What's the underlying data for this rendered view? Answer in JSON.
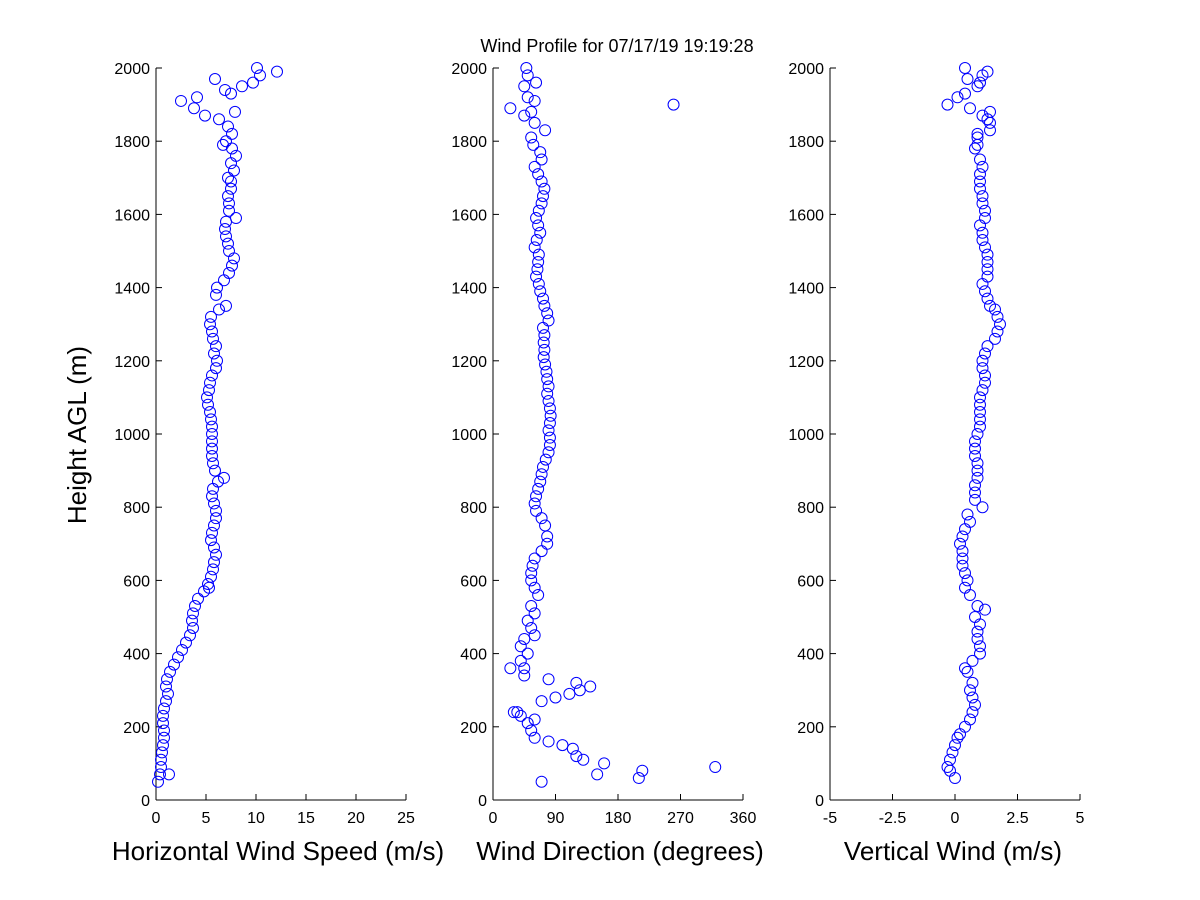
{
  "title": "Wind Profile for  07/17/19 19:19:28",
  "ylabel": "Height AGL (m)",
  "marker_color": "#0000ff",
  "chart_data": [
    {
      "type": "scatter",
      "name": "horizontal-wind-speed",
      "xlabel": "Horizontal Wind Speed (m/s)",
      "ylabel": "Height AGL (m)",
      "xlim": [
        0,
        25
      ],
      "ylim": [
        0,
        2000
      ],
      "xticks": [
        "0",
        "5",
        "10",
        "15",
        "20",
        "25"
      ],
      "yticks": [
        "0",
        "200",
        "400",
        "600",
        "800",
        "1000",
        "1200",
        "1400",
        "1600",
        "1800",
        "2000"
      ],
      "marker": "open-circle",
      "grid": false,
      "points": [
        [
          0.2,
          50
        ],
        [
          0.4,
          70
        ],
        [
          1.3,
          70
        ],
        [
          0.5,
          90
        ],
        [
          0.5,
          110
        ],
        [
          0.6,
          130
        ],
        [
          0.7,
          150
        ],
        [
          0.8,
          170
        ],
        [
          0.8,
          190
        ],
        [
          0.7,
          210
        ],
        [
          0.7,
          230
        ],
        [
          0.8,
          250
        ],
        [
          1.0,
          270
        ],
        [
          1.2,
          290
        ],
        [
          1.0,
          310
        ],
        [
          1.1,
          330
        ],
        [
          1.4,
          350
        ],
        [
          1.8,
          370
        ],
        [
          2.2,
          390
        ],
        [
          2.6,
          410
        ],
        [
          3.0,
          430
        ],
        [
          3.4,
          450
        ],
        [
          3.7,
          470
        ],
        [
          3.6,
          490
        ],
        [
          3.7,
          510
        ],
        [
          3.9,
          530
        ],
        [
          4.2,
          550
        ],
        [
          4.8,
          570
        ],
        [
          5.3,
          580
        ],
        [
          5.2,
          590
        ],
        [
          5.5,
          610
        ],
        [
          5.7,
          630
        ],
        [
          5.8,
          650
        ],
        [
          6.0,
          670
        ],
        [
          5.8,
          690
        ],
        [
          5.5,
          710
        ],
        [
          5.6,
          730
        ],
        [
          5.8,
          750
        ],
        [
          6.0,
          770
        ],
        [
          6.0,
          790
        ],
        [
          5.8,
          810
        ],
        [
          5.6,
          830
        ],
        [
          5.7,
          850
        ],
        [
          6.2,
          870
        ],
        [
          6.8,
          880
        ],
        [
          5.9,
          900
        ],
        [
          5.7,
          920
        ],
        [
          5.6,
          940
        ],
        [
          5.6,
          960
        ],
        [
          5.6,
          980
        ],
        [
          5.6,
          1000
        ],
        [
          5.6,
          1020
        ],
        [
          5.5,
          1040
        ],
        [
          5.4,
          1060
        ],
        [
          5.2,
          1080
        ],
        [
          5.1,
          1100
        ],
        [
          5.3,
          1120
        ],
        [
          5.4,
          1140
        ],
        [
          5.6,
          1160
        ],
        [
          6.0,
          1180
        ],
        [
          6.1,
          1200
        ],
        [
          5.8,
          1220
        ],
        [
          6.0,
          1240
        ],
        [
          5.7,
          1260
        ],
        [
          5.6,
          1280
        ],
        [
          5.4,
          1300
        ],
        [
          5.5,
          1320
        ],
        [
          6.3,
          1340
        ],
        [
          7.0,
          1350
        ],
        [
          6.0,
          1380
        ],
        [
          6.1,
          1400
        ],
        [
          6.8,
          1420
        ],
        [
          7.3,
          1440
        ],
        [
          7.6,
          1460
        ],
        [
          7.8,
          1480
        ],
        [
          7.3,
          1500
        ],
        [
          7.2,
          1520
        ],
        [
          7.0,
          1540
        ],
        [
          6.9,
          1560
        ],
        [
          7.0,
          1580
        ],
        [
          8.0,
          1590
        ],
        [
          7.3,
          1610
        ],
        [
          7.3,
          1630
        ],
        [
          7.2,
          1650
        ],
        [
          7.5,
          1670
        ],
        [
          7.5,
          1690
        ],
        [
          7.2,
          1700
        ],
        [
          7.8,
          1720
        ],
        [
          7.5,
          1740
        ],
        [
          8.0,
          1760
        ],
        [
          7.6,
          1780
        ],
        [
          7.0,
          1800
        ],
        [
          6.7,
          1790
        ],
        [
          7.6,
          1820
        ],
        [
          7.2,
          1840
        ],
        [
          6.3,
          1860
        ],
        [
          4.9,
          1870
        ],
        [
          3.8,
          1890
        ],
        [
          7.9,
          1880
        ],
        [
          2.5,
          1910
        ],
        [
          4.1,
          1920
        ],
        [
          7.5,
          1930
        ],
        [
          6.9,
          1940
        ],
        [
          8.6,
          1950
        ],
        [
          9.7,
          1960
        ],
        [
          10.4,
          1980
        ],
        [
          10.1,
          2000
        ],
        [
          12.1,
          1990
        ],
        [
          5.9,
          1970
        ]
      ]
    },
    {
      "type": "scatter",
      "name": "wind-direction",
      "xlabel": "Wind Direction (degrees)",
      "ylabel": "",
      "xlim": [
        0,
        360
      ],
      "ylim": [
        0,
        2000
      ],
      "xticks": [
        "0",
        "90",
        "180",
        "270",
        "360"
      ],
      "yticks": [
        "0",
        "200",
        "400",
        "600",
        "800",
        "1000",
        "1200",
        "1400",
        "1600",
        "1800",
        "2000"
      ],
      "marker": "open-circle",
      "grid": false,
      "points": [
        [
          70,
          50
        ],
        [
          210,
          60
        ],
        [
          215,
          80
        ],
        [
          320,
          90
        ],
        [
          160,
          100
        ],
        [
          150,
          70
        ],
        [
          130,
          110
        ],
        [
          120,
          120
        ],
        [
          115,
          140
        ],
        [
          100,
          150
        ],
        [
          80,
          160
        ],
        [
          60,
          170
        ],
        [
          55,
          190
        ],
        [
          50,
          210
        ],
        [
          40,
          230
        ],
        [
          35,
          240
        ],
        [
          60,
          220
        ],
        [
          30,
          240
        ],
        [
          70,
          270
        ],
        [
          90,
          280
        ],
        [
          110,
          290
        ],
        [
          125,
          300
        ],
        [
          140,
          310
        ],
        [
          120,
          320
        ],
        [
          80,
          330
        ],
        [
          45,
          340
        ],
        [
          45,
          360
        ],
        [
          25,
          360
        ],
        [
          40,
          380
        ],
        [
          50,
          400
        ],
        [
          40,
          420
        ],
        [
          45,
          440
        ],
        [
          60,
          450
        ],
        [
          55,
          470
        ],
        [
          50,
          490
        ],
        [
          60,
          510
        ],
        [
          55,
          530
        ],
        [
          65,
          560
        ],
        [
          60,
          580
        ],
        [
          55,
          600
        ],
        [
          55,
          620
        ],
        [
          57,
          640
        ],
        [
          60,
          660
        ],
        [
          70,
          680
        ],
        [
          78,
          700
        ],
        [
          78,
          720
        ],
        [
          75,
          750
        ],
        [
          70,
          770
        ],
        [
          62,
          790
        ],
        [
          60,
          810
        ],
        [
          62,
          830
        ],
        [
          65,
          850
        ],
        [
          68,
          870
        ],
        [
          70,
          890
        ],
        [
          72,
          910
        ],
        [
          76,
          930
        ],
        [
          80,
          950
        ],
        [
          82,
          970
        ],
        [
          82,
          990
        ],
        [
          80,
          1010
        ],
        [
          82,
          1030
        ],
        [
          83,
          1050
        ],
        [
          82,
          1070
        ],
        [
          80,
          1090
        ],
        [
          78,
          1110
        ],
        [
          80,
          1130
        ],
        [
          78,
          1150
        ],
        [
          77,
          1170
        ],
        [
          75,
          1190
        ],
        [
          73,
          1210
        ],
        [
          74,
          1230
        ],
        [
          73,
          1250
        ],
        [
          74,
          1270
        ],
        [
          72,
          1290
        ],
        [
          80,
          1310
        ],
        [
          78,
          1330
        ],
        [
          74,
          1350
        ],
        [
          72,
          1370
        ],
        [
          68,
          1390
        ],
        [
          66,
          1410
        ],
        [
          62,
          1430
        ],
        [
          64,
          1450
        ],
        [
          65,
          1470
        ],
        [
          66,
          1490
        ],
        [
          60,
          1510
        ],
        [
          63,
          1530
        ],
        [
          68,
          1550
        ],
        [
          65,
          1570
        ],
        [
          62,
          1590
        ],
        [
          66,
          1610
        ],
        [
          70,
          1630
        ],
        [
          72,
          1650
        ],
        [
          74,
          1670
        ],
        [
          70,
          1690
        ],
        [
          65,
          1710
        ],
        [
          60,
          1730
        ],
        [
          70,
          1750
        ],
        [
          68,
          1770
        ],
        [
          58,
          1790
        ],
        [
          55,
          1810
        ],
        [
          75,
          1830
        ],
        [
          60,
          1850
        ],
        [
          45,
          1870
        ],
        [
          55,
          1880
        ],
        [
          25,
          1890
        ],
        [
          260,
          1900
        ],
        [
          60,
          1910
        ],
        [
          50,
          1920
        ],
        [
          45,
          1950
        ],
        [
          62,
          1960
        ],
        [
          50,
          1980
        ],
        [
          48,
          2000
        ]
      ]
    },
    {
      "type": "scatter",
      "name": "vertical-wind",
      "xlabel": "Vertical Wind (m/s)",
      "ylabel": "",
      "xlim": [
        -5,
        5
      ],
      "ylim": [
        0,
        2000
      ],
      "xticks": [
        "-5",
        "-2.5",
        "0",
        "2.5",
        "5"
      ],
      "yticks": [
        "0",
        "200",
        "400",
        "600",
        "800",
        "1000",
        "1200",
        "1400",
        "1600",
        "1800",
        "2000"
      ],
      "marker": "open-circle",
      "grid": false,
      "points": [
        [
          0.0,
          60
        ],
        [
          -0.2,
          80
        ],
        [
          -0.3,
          90
        ],
        [
          -0.2,
          110
        ],
        [
          -0.1,
          130
        ],
        [
          0.0,
          150
        ],
        [
          0.1,
          170
        ],
        [
          0.2,
          180
        ],
        [
          0.4,
          200
        ],
        [
          0.6,
          220
        ],
        [
          0.7,
          240
        ],
        [
          0.8,
          260
        ],
        [
          0.7,
          280
        ],
        [
          0.6,
          300
        ],
        [
          0.7,
          320
        ],
        [
          0.5,
          350
        ],
        [
          0.4,
          360
        ],
        [
          0.7,
          380
        ],
        [
          1.0,
          400
        ],
        [
          1.0,
          420
        ],
        [
          0.9,
          440
        ],
        [
          0.9,
          460
        ],
        [
          1.0,
          480
        ],
        [
          0.8,
          500
        ],
        [
          1.2,
          520
        ],
        [
          0.9,
          530
        ],
        [
          0.6,
          560
        ],
        [
          0.4,
          580
        ],
        [
          0.5,
          600
        ],
        [
          0.4,
          620
        ],
        [
          0.3,
          640
        ],
        [
          0.3,
          660
        ],
        [
          0.3,
          680
        ],
        [
          0.2,
          700
        ],
        [
          0.3,
          720
        ],
        [
          0.4,
          740
        ],
        [
          0.6,
          760
        ],
        [
          0.5,
          780
        ],
        [
          1.1,
          800
        ],
        [
          0.8,
          820
        ],
        [
          0.8,
          840
        ],
        [
          0.8,
          860
        ],
        [
          0.9,
          880
        ],
        [
          0.9,
          900
        ],
        [
          0.9,
          920
        ],
        [
          0.8,
          940
        ],
        [
          0.8,
          960
        ],
        [
          0.8,
          980
        ],
        [
          0.9,
          1000
        ],
        [
          1.0,
          1020
        ],
        [
          1.0,
          1040
        ],
        [
          1.0,
          1060
        ],
        [
          1.0,
          1080
        ],
        [
          1.0,
          1100
        ],
        [
          1.1,
          1120
        ],
        [
          1.2,
          1140
        ],
        [
          1.2,
          1160
        ],
        [
          1.1,
          1180
        ],
        [
          1.1,
          1200
        ],
        [
          1.2,
          1220
        ],
        [
          1.3,
          1240
        ],
        [
          1.6,
          1260
        ],
        [
          1.7,
          1280
        ],
        [
          1.8,
          1300
        ],
        [
          1.7,
          1320
        ],
        [
          1.6,
          1340
        ],
        [
          1.4,
          1350
        ],
        [
          1.3,
          1370
        ],
        [
          1.2,
          1390
        ],
        [
          1.1,
          1410
        ],
        [
          1.3,
          1430
        ],
        [
          1.3,
          1450
        ],
        [
          1.3,
          1470
        ],
        [
          1.3,
          1490
        ],
        [
          1.2,
          1510
        ],
        [
          1.1,
          1530
        ],
        [
          1.1,
          1550
        ],
        [
          1.0,
          1570
        ],
        [
          1.2,
          1590
        ],
        [
          1.2,
          1610
        ],
        [
          1.1,
          1630
        ],
        [
          1.1,
          1650
        ],
        [
          1.0,
          1670
        ],
        [
          1.0,
          1690
        ],
        [
          1.0,
          1710
        ],
        [
          1.1,
          1730
        ],
        [
          1.0,
          1750
        ],
        [
          0.8,
          1780
        ],
        [
          0.9,
          1790
        ],
        [
          0.9,
          1810
        ],
        [
          0.9,
          1820
        ],
        [
          1.4,
          1830
        ],
        [
          1.4,
          1850
        ],
        [
          1.3,
          1860
        ],
        [
          1.4,
          1880
        ],
        [
          1.1,
          1870
        ],
        [
          -0.3,
          1900
        ],
        [
          0.1,
          1920
        ],
        [
          0.4,
          1930
        ],
        [
          0.6,
          1890
        ],
        [
          0.9,
          1950
        ],
        [
          1.0,
          1960
        ],
        [
          0.5,
          1970
        ],
        [
          1.3,
          1990
        ],
        [
          1.1,
          1980
        ],
        [
          0.4,
          2000
        ]
      ]
    }
  ]
}
